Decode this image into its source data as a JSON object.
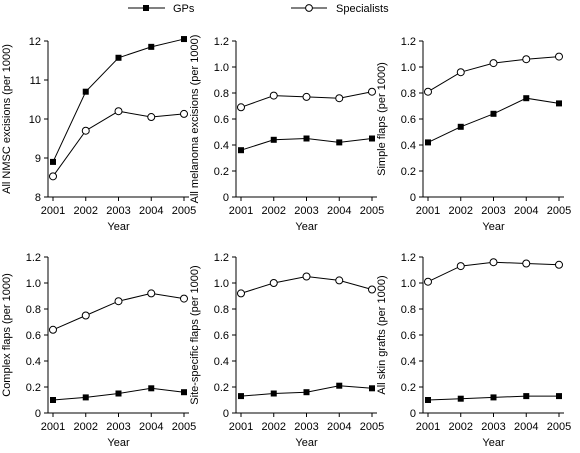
{
  "legend": {
    "items": [
      {
        "label": "GPs",
        "marker": "filled-square"
      },
      {
        "label": "Specialists",
        "marker": "open-circle"
      }
    ]
  },
  "colors": {
    "line": "#000000",
    "gp_marker": "#000000",
    "specialist_fill": "#ffffff"
  },
  "chart_data": [
    {
      "type": "line",
      "xlabel": "Year",
      "ylabel": "All NMSC excisions (per 1000)",
      "categories": [
        "2001",
        "2002",
        "2003",
        "2004",
        "2005"
      ],
      "ylim": [
        8,
        12
      ],
      "yticks": [
        "8",
        "9",
        "10",
        "11",
        "12"
      ],
      "series": [
        {
          "name": "GPs",
          "values": [
            8.9,
            10.7,
            11.57,
            11.85,
            12.05
          ]
        },
        {
          "name": "Specialists",
          "values": [
            8.53,
            9.7,
            10.2,
            10.05,
            10.13
          ]
        }
      ]
    },
    {
      "type": "line",
      "xlabel": "Year",
      "ylabel": "All melanoma excisions (per 1000)",
      "categories": [
        "2001",
        "2002",
        "2003",
        "2004",
        "2005"
      ],
      "ylim": [
        0,
        1.2
      ],
      "yticks": [
        "0",
        "0.2",
        "0.4",
        "0.6",
        "0.8",
        "1.0",
        "1.2"
      ],
      "series": [
        {
          "name": "GPs",
          "values": [
            0.36,
            0.44,
            0.45,
            0.42,
            0.45
          ]
        },
        {
          "name": "Specialists",
          "values": [
            0.69,
            0.78,
            0.77,
            0.76,
            0.81
          ]
        }
      ]
    },
    {
      "type": "line",
      "xlabel": "Year",
      "ylabel": "Simple flaps (per 1000)",
      "categories": [
        "2001",
        "2002",
        "2003",
        "2004",
        "2005"
      ],
      "ylim": [
        0,
        1.2
      ],
      "yticks": [
        "0",
        "0.2",
        "0.4",
        "0.6",
        "0.8",
        "1.0",
        "1.2"
      ],
      "series": [
        {
          "name": "GPs",
          "values": [
            0.42,
            0.54,
            0.64,
            0.76,
            0.72
          ]
        },
        {
          "name": "Specialists",
          "values": [
            0.81,
            0.96,
            1.03,
            1.06,
            1.08
          ]
        }
      ]
    },
    {
      "type": "line",
      "xlabel": "Year",
      "ylabel": "Complex flaps (per 1000)",
      "categories": [
        "2001",
        "2002",
        "2003",
        "2004",
        "2005"
      ],
      "ylim": [
        0,
        1.2
      ],
      "yticks": [
        "0",
        "0.2",
        "0.4",
        "0.6",
        "0.8",
        "1.0",
        "1.2"
      ],
      "series": [
        {
          "name": "GPs",
          "values": [
            0.1,
            0.12,
            0.15,
            0.19,
            0.16
          ]
        },
        {
          "name": "Specialists",
          "values": [
            0.64,
            0.75,
            0.86,
            0.92,
            0.88
          ]
        }
      ]
    },
    {
      "type": "line",
      "xlabel": "Year",
      "ylabel": "Site-specific flaps (per 1000)",
      "categories": [
        "2001",
        "2002",
        "2003",
        "2004",
        "2005"
      ],
      "ylim": [
        0,
        1.2
      ],
      "yticks": [
        "0",
        "0.2",
        "0.4",
        "0.6",
        "0.8",
        "1.0",
        "1.2"
      ],
      "series": [
        {
          "name": "GPs",
          "values": [
            0.13,
            0.15,
            0.16,
            0.21,
            0.19
          ]
        },
        {
          "name": "Specialists",
          "values": [
            0.92,
            1.0,
            1.05,
            1.02,
            0.95
          ]
        }
      ]
    },
    {
      "type": "line",
      "xlabel": "Year",
      "ylabel": "All skin grafts (per 1000)",
      "categories": [
        "2001",
        "2002",
        "2003",
        "2004",
        "2005"
      ],
      "ylim": [
        0,
        1.2
      ],
      "yticks": [
        "0",
        "0.2",
        "0.4",
        "0.6",
        "0.8",
        "1.0",
        "1.2"
      ],
      "series": [
        {
          "name": "GPs",
          "values": [
            0.1,
            0.11,
            0.12,
            0.13,
            0.13
          ]
        },
        {
          "name": "Specialists",
          "values": [
            1.01,
            1.13,
            1.16,
            1.15,
            1.14
          ]
        }
      ]
    }
  ]
}
